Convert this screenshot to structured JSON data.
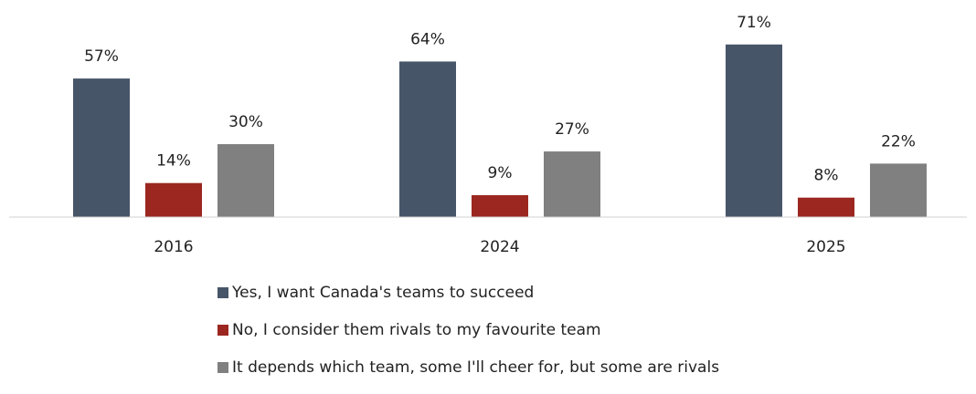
{
  "chart_data": {
    "type": "bar",
    "categories": [
      "2016",
      "2024",
      "2025"
    ],
    "series": [
      {
        "name": "Yes, I want Canada's teams to succeed",
        "values": [
          57,
          64,
          71
        ],
        "labels": [
          "57%",
          "64%",
          "71%"
        ],
        "color": "#475569"
      },
      {
        "name": "No, I consider them rivals to my favourite team",
        "values": [
          14,
          9,
          8
        ],
        "labels": [
          "14%",
          "9%",
          "8%"
        ],
        "color": "#9b2720"
      },
      {
        "name": "It depends which team, some I'll cheer for, but some are rivals",
        "values": [
          30,
          27,
          22
        ],
        "labels": [
          "30%",
          "27%",
          "22%"
        ],
        "color": "#808080"
      }
    ],
    "ylim": [
      0,
      80
    ],
    "grid": false,
    "legend_position": "bottom",
    "data_labels": true
  }
}
